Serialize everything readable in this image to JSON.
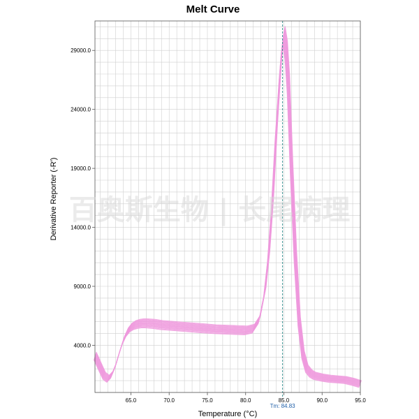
{
  "chart_data": {
    "type": "line",
    "title": "Melt Curve",
    "xlabel": "Temperature (°C)",
    "ylabel": "Derivative Reporter (-R')",
    "xlim": [
      60.3,
      95.0
    ],
    "ylim": [
      0,
      31500
    ],
    "x_ticks": [
      65.0,
      70.0,
      75.0,
      80.0,
      85.0,
      90.0,
      95.0
    ],
    "y_ticks": [
      4000.0,
      9000.0,
      14000.0,
      19000.0,
      24000.0,
      29000.0
    ],
    "x_tick_labels": [
      "65.0",
      "70.0",
      "75.0",
      "80.0",
      "85.0",
      "90.0",
      "95.0"
    ],
    "y_tick_labels": [
      "4000.0",
      "9000.0",
      "14000.0",
      "19000.0",
      "24000.0",
      "29000.0"
    ],
    "grid": true,
    "line_color": "#ee99dd",
    "tm_line_color": "#2a8a8a",
    "tm": 84.83,
    "tm_label": "Tm: 84.83",
    "series_count": 16,
    "base_curve": {
      "x": [
        60.3,
        61.0,
        61.5,
        62.0,
        62.5,
        63.0,
        63.5,
        64.0,
        64.5,
        65.0,
        65.5,
        66.0,
        66.5,
        67.0,
        68.0,
        69.0,
        70.0,
        72.0,
        74.0,
        76.0,
        78.0,
        80.0,
        81.0,
        81.8,
        82.5,
        83.0,
        83.5,
        84.0,
        84.5,
        84.8,
        85.0,
        85.3,
        85.6,
        86.0,
        86.5,
        87.0,
        87.5,
        88.0,
        88.5,
        89.0,
        90.0,
        91.0,
        92.0,
        93.0,
        94.0,
        95.0
      ],
      "y": [
        3100,
        2100,
        1400,
        1150,
        1500,
        2300,
        3400,
        4400,
        5100,
        5500,
        5700,
        5800,
        5850,
        5850,
        5800,
        5700,
        5650,
        5550,
        5450,
        5350,
        5300,
        5250,
        5400,
        6200,
        8500,
        11500,
        16000,
        22000,
        27000,
        29500,
        30200,
        29000,
        26000,
        19000,
        11500,
        6000,
        3200,
        2000,
        1600,
        1400,
        1250,
        1150,
        1100,
        1050,
        900,
        700
      ]
    },
    "curve_offsets": [
      -450,
      -380,
      -300,
      -240,
      -180,
      -120,
      -60,
      0,
      50,
      110,
      170,
      230,
      290,
      350,
      410,
      480
    ],
    "watermark": "百奥斯生物 | 长尾病理"
  }
}
